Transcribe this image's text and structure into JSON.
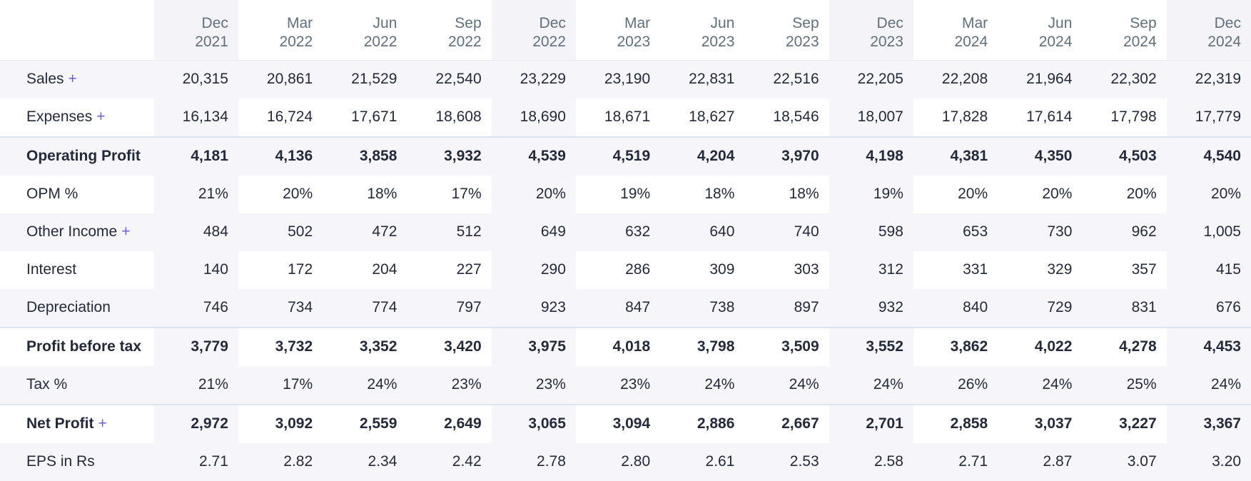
{
  "periods": [
    {
      "mon": "Dec",
      "yr": "2021"
    },
    {
      "mon": "Mar",
      "yr": "2022"
    },
    {
      "mon": "Jun",
      "yr": "2022"
    },
    {
      "mon": "Sep",
      "yr": "2022"
    },
    {
      "mon": "Dec",
      "yr": "2022"
    },
    {
      "mon": "Mar",
      "yr": "2023"
    },
    {
      "mon": "Jun",
      "yr": "2023"
    },
    {
      "mon": "Sep",
      "yr": "2023"
    },
    {
      "mon": "Dec",
      "yr": "2023"
    },
    {
      "mon": "Mar",
      "yr": "2024"
    },
    {
      "mon": "Jun",
      "yr": "2024"
    },
    {
      "mon": "Sep",
      "yr": "2024"
    },
    {
      "mon": "Dec",
      "yr": "2024"
    }
  ],
  "rows": [
    {
      "label": "Sales",
      "expandable": true,
      "bold": false,
      "values": [
        "20,315",
        "20,861",
        "21,529",
        "22,540",
        "23,229",
        "23,190",
        "22,831",
        "22,516",
        "22,205",
        "22,208",
        "21,964",
        "22,302",
        "22,319"
      ]
    },
    {
      "label": "Expenses",
      "expandable": true,
      "bold": false,
      "values": [
        "16,134",
        "16,724",
        "17,671",
        "18,608",
        "18,690",
        "18,671",
        "18,627",
        "18,546",
        "18,007",
        "17,828",
        "17,614",
        "17,798",
        "17,779"
      ]
    },
    {
      "label": "Operating Profit",
      "expandable": false,
      "bold": true,
      "values": [
        "4,181",
        "4,136",
        "3,858",
        "3,932",
        "4,539",
        "4,519",
        "4,204",
        "3,970",
        "4,198",
        "4,381",
        "4,350",
        "4,503",
        "4,540"
      ]
    },
    {
      "label": "OPM %",
      "expandable": false,
      "bold": false,
      "values": [
        "21%",
        "20%",
        "18%",
        "17%",
        "20%",
        "19%",
        "18%",
        "18%",
        "19%",
        "20%",
        "20%",
        "20%",
        "20%"
      ]
    },
    {
      "label": "Other Income",
      "expandable": true,
      "bold": false,
      "values": [
        "484",
        "502",
        "472",
        "512",
        "649",
        "632",
        "640",
        "740",
        "598",
        "653",
        "730",
        "962",
        "1,005"
      ]
    },
    {
      "label": "Interest",
      "expandable": false,
      "bold": false,
      "values": [
        "140",
        "172",
        "204",
        "227",
        "290",
        "286",
        "309",
        "303",
        "312",
        "331",
        "329",
        "357",
        "415"
      ]
    },
    {
      "label": "Depreciation",
      "expandable": false,
      "bold": false,
      "values": [
        "746",
        "734",
        "774",
        "797",
        "923",
        "847",
        "738",
        "897",
        "932",
        "840",
        "729",
        "831",
        "676"
      ]
    },
    {
      "label": "Profit before tax",
      "expandable": false,
      "bold": true,
      "values": [
        "3,779",
        "3,732",
        "3,352",
        "3,420",
        "3,975",
        "4,018",
        "3,798",
        "3,509",
        "3,552",
        "3,862",
        "4,022",
        "4,278",
        "4,453"
      ]
    },
    {
      "label": "Tax %",
      "expandable": false,
      "bold": false,
      "values": [
        "21%",
        "17%",
        "24%",
        "23%",
        "23%",
        "23%",
        "24%",
        "24%",
        "24%",
        "26%",
        "24%",
        "25%",
        "24%"
      ]
    },
    {
      "label": "Net Profit",
      "expandable": true,
      "bold": true,
      "values": [
        "2,972",
        "3,092",
        "2,559",
        "2,649",
        "3,065",
        "3,094",
        "2,886",
        "2,667",
        "2,701",
        "2,858",
        "3,037",
        "3,227",
        "3,367"
      ]
    },
    {
      "label": "EPS in Rs",
      "expandable": false,
      "bold": false,
      "values": [
        "2.71",
        "2.82",
        "2.34",
        "2.42",
        "2.78",
        "2.80",
        "2.61",
        "2.53",
        "2.58",
        "2.71",
        "2.87",
        "3.07",
        "3.20"
      ]
    }
  ],
  "expand_symbol": "+",
  "colors": {
    "accent": "#6a5fd6",
    "header_text": "#606f7b",
    "row_alt": "#f6f6fa",
    "divider": "#dbe2f0"
  }
}
